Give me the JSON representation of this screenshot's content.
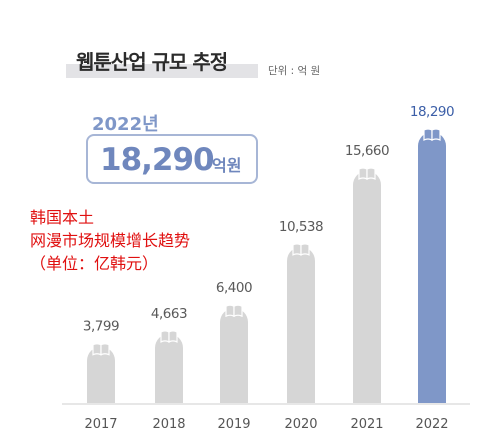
{
  "header": {
    "title": "웹툰산업 규모 추정",
    "unit": "단위 : 억 원"
  },
  "highlight": {
    "year": "2022년",
    "value": "18,290",
    "suffix": "억원"
  },
  "overlay_note": {
    "line1": "韩国本土",
    "line2": "网漫市场规模增长趋势",
    "line3": "（单位：亿韩元）"
  },
  "colors": {
    "bar_default": "#d6d6d6",
    "bar_highlight": "#7f97c8",
    "label_default": "#5a5a5a",
    "label_highlight": "#3c5fa8"
  },
  "chart_data": {
    "type": "bar",
    "title": "웹툰산업 규모 추정",
    "xlabel": "",
    "ylabel": "",
    "categories": [
      "2017",
      "2018",
      "2019",
      "2020",
      "2021",
      "2022"
    ],
    "values": [
      3799,
      4663,
      6400,
      10538,
      15660,
      18290
    ],
    "value_labels": [
      "3,799",
      "4,663",
      "6,400",
      "10,538",
      "15,660",
      "18,290"
    ],
    "highlight_index": 5,
    "ylim": [
      0,
      18290
    ],
    "grid": false
  }
}
